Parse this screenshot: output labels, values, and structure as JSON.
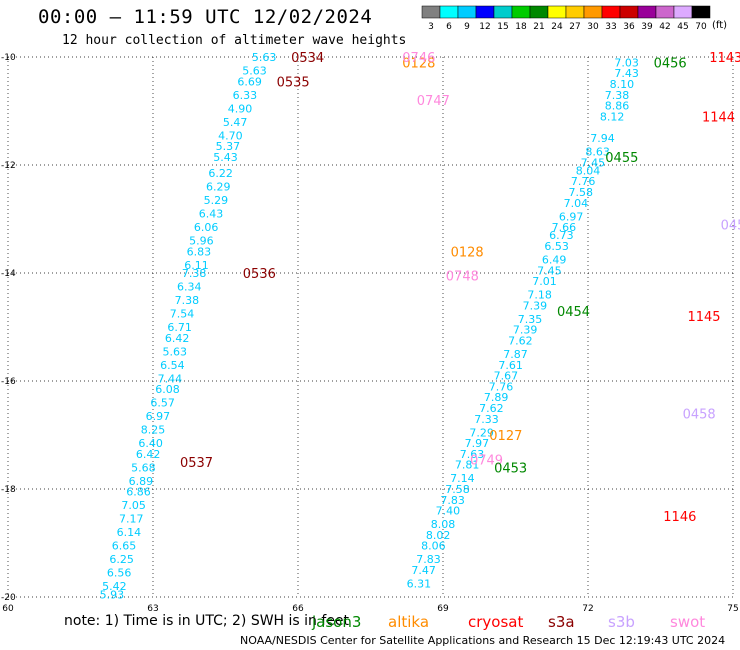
{
  "header": {
    "title": "00:00 – 11:59 UTC 12/02/2024",
    "subtitle": "12 hour collection of altimeter wave heights"
  },
  "colorbar": {
    "labels": [
      "3",
      "6",
      "9",
      "12",
      "15",
      "18",
      "21",
      "24",
      "27",
      "30",
      "33",
      "36",
      "39",
      "42",
      "45",
      "70"
    ],
    "colors": [
      "#808080",
      "#00ffff",
      "#00ccff",
      "#0000ff",
      "#00cccc",
      "#00cc00",
      "#008800",
      "#ffff00",
      "#ffcc00",
      "#ff9900",
      "#ff0000",
      "#cc0000",
      "#990099",
      "#cc66cc",
      "#ddaaff",
      "#000000"
    ],
    "unit": "(ft)"
  },
  "footer": {
    "note": "note:  1) Time is in UTC; 2) SWH is in feet",
    "satellites": [
      {
        "name": "jason3",
        "color": "#008800"
      },
      {
        "name": "altika",
        "color": "#ff8c00"
      },
      {
        "name": "cryosat",
        "color": "#ff0000"
      },
      {
        "name": "s3a",
        "color": "#8b0000"
      },
      {
        "name": "s3b",
        "color": "#c8a2ff"
      },
      {
        "name": "swot",
        "color": "#ff88dd"
      }
    ],
    "credit": "NOAA/NESDIS Center for Satellite Applications and Research    15 Dec 12:19:43 UTC 2024"
  },
  "chart_data": {
    "type": "scatter",
    "xlim": [
      60,
      75
    ],
    "ylim": [
      -20,
      -10
    ],
    "xticks": [
      "60",
      "63",
      "66",
      "69",
      "72",
      "75"
    ],
    "yticks": [
      "-10",
      "-12",
      "-14",
      "-16",
      "-18",
      "-20"
    ],
    "grid": true,
    "tracks": [
      {
        "name": "track-s3a-left",
        "color": "#00ccff",
        "points": [
          [
            65.3,
            -10.0,
            "5.63"
          ],
          [
            65.1,
            -10.25,
            "5.63"
          ],
          [
            65.0,
            -10.45,
            "6.69"
          ],
          [
            64.9,
            -10.7,
            "6.33"
          ],
          [
            64.8,
            -10.95,
            "4.90"
          ],
          [
            64.7,
            -11.2,
            "5.47"
          ],
          [
            64.6,
            -11.45,
            "4.70"
          ],
          [
            64.55,
            -11.65,
            "5.37"
          ],
          [
            64.5,
            -11.85,
            "5.43"
          ],
          [
            64.4,
            -12.15,
            "6.22"
          ],
          [
            64.35,
            -12.4,
            "6.29"
          ],
          [
            64.3,
            -12.65,
            "5.29"
          ],
          [
            64.2,
            -12.9,
            "6.43"
          ],
          [
            64.1,
            -13.15,
            "6.06"
          ],
          [
            64.0,
            -13.4,
            "5.96"
          ],
          [
            63.95,
            -13.6,
            "6.83"
          ],
          [
            63.9,
            -13.85,
            "6.11"
          ],
          [
            63.85,
            -14.0,
            "7.38"
          ],
          [
            63.75,
            -14.25,
            "6.34"
          ],
          [
            63.7,
            -14.5,
            "7.38"
          ],
          [
            63.6,
            -14.75,
            "7.54"
          ],
          [
            63.55,
            -15.0,
            "6.71"
          ],
          [
            63.5,
            -15.2,
            "6.42"
          ],
          [
            63.45,
            -15.45,
            "5.63"
          ],
          [
            63.4,
            -15.7,
            "6.54"
          ],
          [
            63.35,
            -15.95,
            "7.44"
          ],
          [
            63.3,
            -16.15,
            "6.08"
          ],
          [
            63.2,
            -16.4,
            "6.57"
          ],
          [
            63.1,
            -16.65,
            "6.97"
          ],
          [
            63.0,
            -16.9,
            "8.25"
          ],
          [
            62.95,
            -17.15,
            "6.40"
          ],
          [
            62.9,
            -17.35,
            "6.42"
          ],
          [
            62.8,
            -17.6,
            "5.68"
          ],
          [
            62.75,
            -17.85,
            "6.89"
          ],
          [
            62.7,
            -18.05,
            "6.86"
          ],
          [
            62.6,
            -18.3,
            "7.05"
          ],
          [
            62.55,
            -18.55,
            "7.17"
          ],
          [
            62.5,
            -18.8,
            "6.14"
          ],
          [
            62.4,
            -19.05,
            "6.65"
          ],
          [
            62.35,
            -19.3,
            "6.25"
          ],
          [
            62.3,
            -19.55,
            "6.56"
          ],
          [
            62.2,
            -19.8,
            "5.42"
          ],
          [
            62.15,
            -19.95,
            "5.93"
          ]
        ]
      },
      {
        "name": "track-jason3-right",
        "color": "#00ccff",
        "points": [
          [
            72.8,
            -10.1,
            "7.03"
          ],
          [
            72.8,
            -10.3,
            "7.43"
          ],
          [
            72.7,
            -10.5,
            "8.10"
          ],
          [
            72.6,
            -10.7,
            "7.38"
          ],
          [
            72.6,
            -10.9,
            "8.86"
          ],
          [
            72.5,
            -11.1,
            "8.12"
          ],
          [
            72.3,
            -11.5,
            "7.94"
          ],
          [
            72.2,
            -11.75,
            "8.63"
          ],
          [
            72.1,
            -11.95,
            "7.45"
          ],
          [
            72.0,
            -12.1,
            "8.04"
          ],
          [
            71.9,
            -12.3,
            "7.76"
          ],
          [
            71.85,
            -12.5,
            "7.58"
          ],
          [
            71.75,
            -12.7,
            "7.04"
          ],
          [
            71.65,
            -12.95,
            "6.97"
          ],
          [
            71.5,
            -13.15,
            "7.66"
          ],
          [
            71.45,
            -13.3,
            "6.73"
          ],
          [
            71.35,
            -13.5,
            "6.53"
          ],
          [
            71.3,
            -13.75,
            "6.49"
          ],
          [
            71.2,
            -13.95,
            "7.45"
          ],
          [
            71.1,
            -14.15,
            "7.01"
          ],
          [
            71.0,
            -14.4,
            "7.18"
          ],
          [
            70.9,
            -14.6,
            "7.39"
          ],
          [
            70.8,
            -14.85,
            "7.35"
          ],
          [
            70.7,
            -15.05,
            "7.39"
          ],
          [
            70.6,
            -15.25,
            "7.62"
          ],
          [
            70.5,
            -15.5,
            "7.87"
          ],
          [
            70.4,
            -15.7,
            "7.61"
          ],
          [
            70.3,
            -15.9,
            "7.67"
          ],
          [
            70.2,
            -16.1,
            "7.76"
          ],
          [
            70.1,
            -16.3,
            "7.89"
          ],
          [
            70.0,
            -16.5,
            "7.62"
          ],
          [
            69.9,
            -16.7,
            "7.33"
          ],
          [
            69.8,
            -16.95,
            "7.29"
          ],
          [
            69.7,
            -17.15,
            "7.97"
          ],
          [
            69.6,
            -17.35,
            "7.63"
          ],
          [
            69.5,
            -17.55,
            "7.81"
          ],
          [
            69.4,
            -17.8,
            "7.14"
          ],
          [
            69.3,
            -18.0,
            "7.58"
          ],
          [
            69.2,
            -18.2,
            "7.83"
          ],
          [
            69.1,
            -18.4,
            "7.40"
          ],
          [
            69.0,
            -18.65,
            "8.08"
          ],
          [
            68.9,
            -18.85,
            "8.02"
          ],
          [
            68.8,
            -19.05,
            "8.06"
          ],
          [
            68.7,
            -19.3,
            "7.83"
          ],
          [
            68.6,
            -19.5,
            "7.47"
          ],
          [
            68.5,
            -19.75,
            "6.31"
          ]
        ]
      }
    ],
    "pass_labels": [
      {
        "text": "0534",
        "x": 66.2,
        "y": -10.0,
        "color": "#8b0000"
      },
      {
        "text": "0535",
        "x": 65.9,
        "y": -10.45,
        "color": "#8b0000"
      },
      {
        "text": "0536",
        "x": 65.2,
        "y": -14.0,
        "color": "#8b0000"
      },
      {
        "text": "0537",
        "x": 63.9,
        "y": -17.5,
        "color": "#8b0000"
      },
      {
        "text": "0128",
        "x": 68.5,
        "y": -10.1,
        "color": "#ff8c00"
      },
      {
        "text": "0128",
        "x": 69.5,
        "y": -13.6,
        "color": "#ff8c00"
      },
      {
        "text": "0127",
        "x": 70.3,
        "y": -17.0,
        "color": "#ff8c00"
      },
      {
        "text": "0746",
        "x": 68.5,
        "y": -10.0,
        "color": "#ff88dd"
      },
      {
        "text": "0747",
        "x": 68.8,
        "y": -10.8,
        "color": "#ff88dd"
      },
      {
        "text": "0748",
        "x": 69.4,
        "y": -14.05,
        "color": "#ff88dd"
      },
      {
        "text": "0749",
        "x": 69.9,
        "y": -17.45,
        "color": "#ff88dd"
      },
      {
        "text": "0456",
        "x": 73.7,
        "y": -10.1,
        "color": "#008800"
      },
      {
        "text": "0455",
        "x": 72.7,
        "y": -11.85,
        "color": "#008800"
      },
      {
        "text": "0454",
        "x": 71.7,
        "y": -14.7,
        "color": "#008800"
      },
      {
        "text": "0453",
        "x": 70.4,
        "y": -17.6,
        "color": "#008800"
      },
      {
        "text": "1143",
        "x": 74.85,
        "y": -10.0,
        "color": "#ff0000"
      },
      {
        "text": "1144",
        "x": 74.7,
        "y": -11.1,
        "color": "#ff0000"
      },
      {
        "text": "1145",
        "x": 74.4,
        "y": -14.8,
        "color": "#ff0000"
      },
      {
        "text": "1146",
        "x": 73.9,
        "y": -18.5,
        "color": "#ff0000"
      },
      {
        "text": "045",
        "x": 75.0,
        "y": -13.1,
        "color": "#c8a2ff"
      },
      {
        "text": "0458",
        "x": 74.3,
        "y": -16.6,
        "color": "#c8a2ff"
      }
    ]
  }
}
